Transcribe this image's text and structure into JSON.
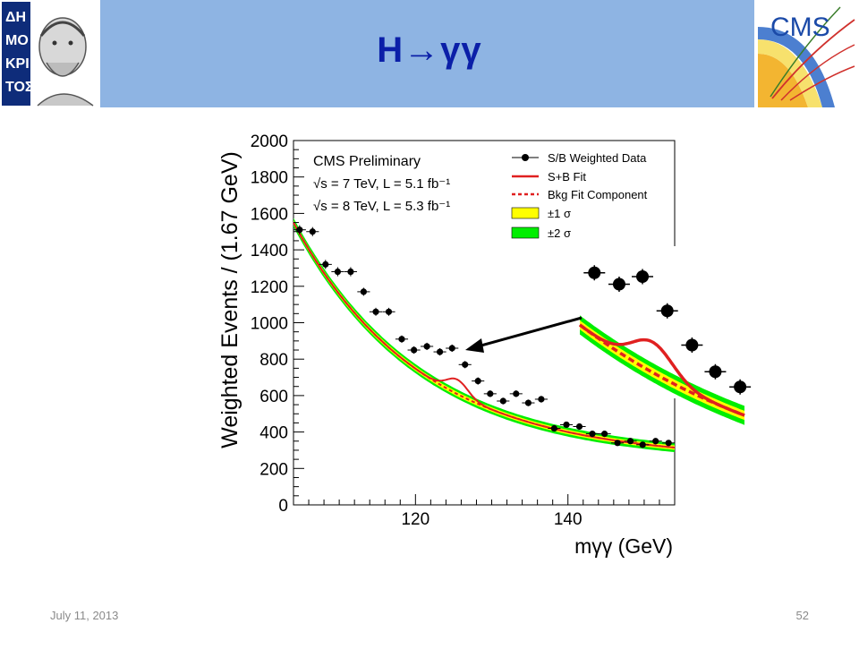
{
  "slide": {
    "title": "H→γγ",
    "date": "July 11, 2013",
    "page": "52",
    "header_color": "#8eb4e3",
    "title_color": "#0b1fa8"
  },
  "logos": {
    "left": {
      "icon": "democritus-portrait-icon",
      "text": "ΔΗΜΟΚΡΙΤΟΣ"
    },
    "right": {
      "icon": "cms-logo-icon",
      "text": "CMS"
    }
  },
  "chart_data": {
    "type": "scatter",
    "xlabel": "mγγ (GeV)",
    "ylabel": "Weighted Events / (1.67 GeV)",
    "xlim": [
      104,
      154
    ],
    "ylim": [
      0,
      2000
    ],
    "xticks": [
      "120",
      "140"
    ],
    "yticks": [
      "0",
      "200",
      "400",
      "600",
      "800",
      "1000",
      "1200",
      "1400",
      "1600",
      "1800",
      "2000"
    ],
    "annotations": [
      "CMS Preliminary",
      "√s = 7 TeV, L = 5.1 fb⁻¹",
      "√s = 8 TeV, L = 5.3 fb⁻¹"
    ],
    "legend_position": "top-right",
    "legend": [
      {
        "label": "S/B Weighted Data",
        "style": "points"
      },
      {
        "label": "S+B Fit",
        "style": "line",
        "color": "#e02020"
      },
      {
        "label": "Bkg Fit Component",
        "style": "dashed",
        "color": "#e02020"
      },
      {
        "label": "±1 σ",
        "style": "band",
        "color": "#ffff00"
      },
      {
        "label": "±2 σ",
        "style": "band",
        "color": "#00ee00"
      }
    ],
    "data": {
      "x": [
        104.8,
        106.5,
        108.2,
        109.8,
        111.5,
        113.2,
        114.8,
        116.5,
        118.2,
        119.8,
        121.5,
        123.2,
        124.8,
        126.5,
        128.2,
        129.8,
        131.5,
        133.2,
        134.8,
        136.5,
        138.2,
        139.8,
        141.5,
        143.2,
        144.8,
        146.5,
        148.2,
        149.8,
        151.5,
        153.2
      ],
      "y": [
        1510,
        1500,
        1320,
        1280,
        1280,
        1170,
        1060,
        1060,
        910,
        850,
        870,
        840,
        860,
        770,
        680,
        610,
        570,
        610,
        560,
        580,
        420,
        440,
        430,
        390,
        390,
        340,
        350,
        330,
        350,
        340
      ],
      "yerr": [
        25,
        25,
        25,
        25,
        25,
        22,
        22,
        22,
        20,
        20,
        20,
        20,
        20,
        20,
        20,
        18,
        18,
        18,
        18,
        18,
        15,
        15,
        15,
        15,
        15,
        15,
        15,
        15,
        15,
        15
      ]
    },
    "background_fit": {
      "formula": "a*exp(-b*(x-104))+c",
      "a": 1300,
      "b": 0.06,
      "c": 250
    },
    "signal": {
      "mass": 125.5,
      "width": 1.4,
      "amplitude": 80
    },
    "bands": {
      "sigma1": 12,
      "sigma2": 25
    },
    "inset": {
      "x": [
        121.5,
        123.2,
        124.8,
        126.5,
        128.2,
        129.8,
        131.5
      ],
      "y": [
        870,
        840,
        860,
        770,
        680,
        610,
        570
      ],
      "xlim": [
        120.5,
        131.8
      ],
      "ylim": [
        540,
        940
      ]
    }
  }
}
